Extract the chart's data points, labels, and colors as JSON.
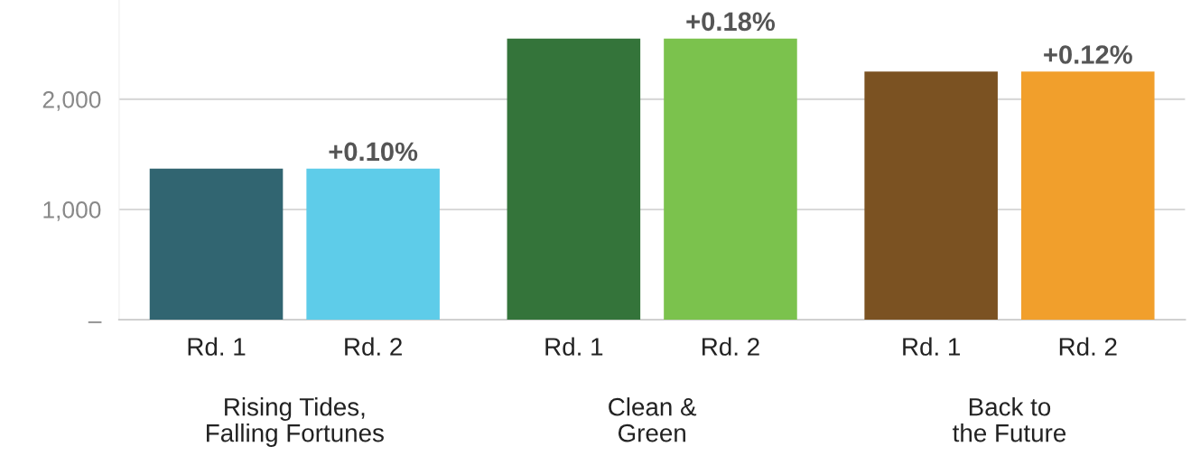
{
  "chart_data": {
    "type": "bar",
    "categories": [
      "Rd. 1",
      "Rd. 2",
      "Rd. 1",
      "Rd. 2",
      "Rd. 1",
      "Rd. 2"
    ],
    "values": [
      1370,
      1370,
      2550,
      2550,
      2250,
      2250
    ],
    "colors": [
      "#316571",
      "#5ecce9",
      "#34743a",
      "#7bc24d",
      "#7b5222",
      "#f19f2c"
    ],
    "annotations": [
      "Rising Tides,\nFalling Fortunes",
      "Clean &\nGreen",
      "Back to\nthe Future",
      "+0.10%",
      "+0.18%",
      "+0.12%"
    ],
    "ylim": [
      0,
      2900
    ],
    "yticks": [
      {
        "value": 0,
        "label": "–"
      },
      {
        "value": 1000,
        "label": "1,000"
      },
      {
        "value": 2000,
        "label": "2,000"
      }
    ],
    "grid": "y"
  }
}
